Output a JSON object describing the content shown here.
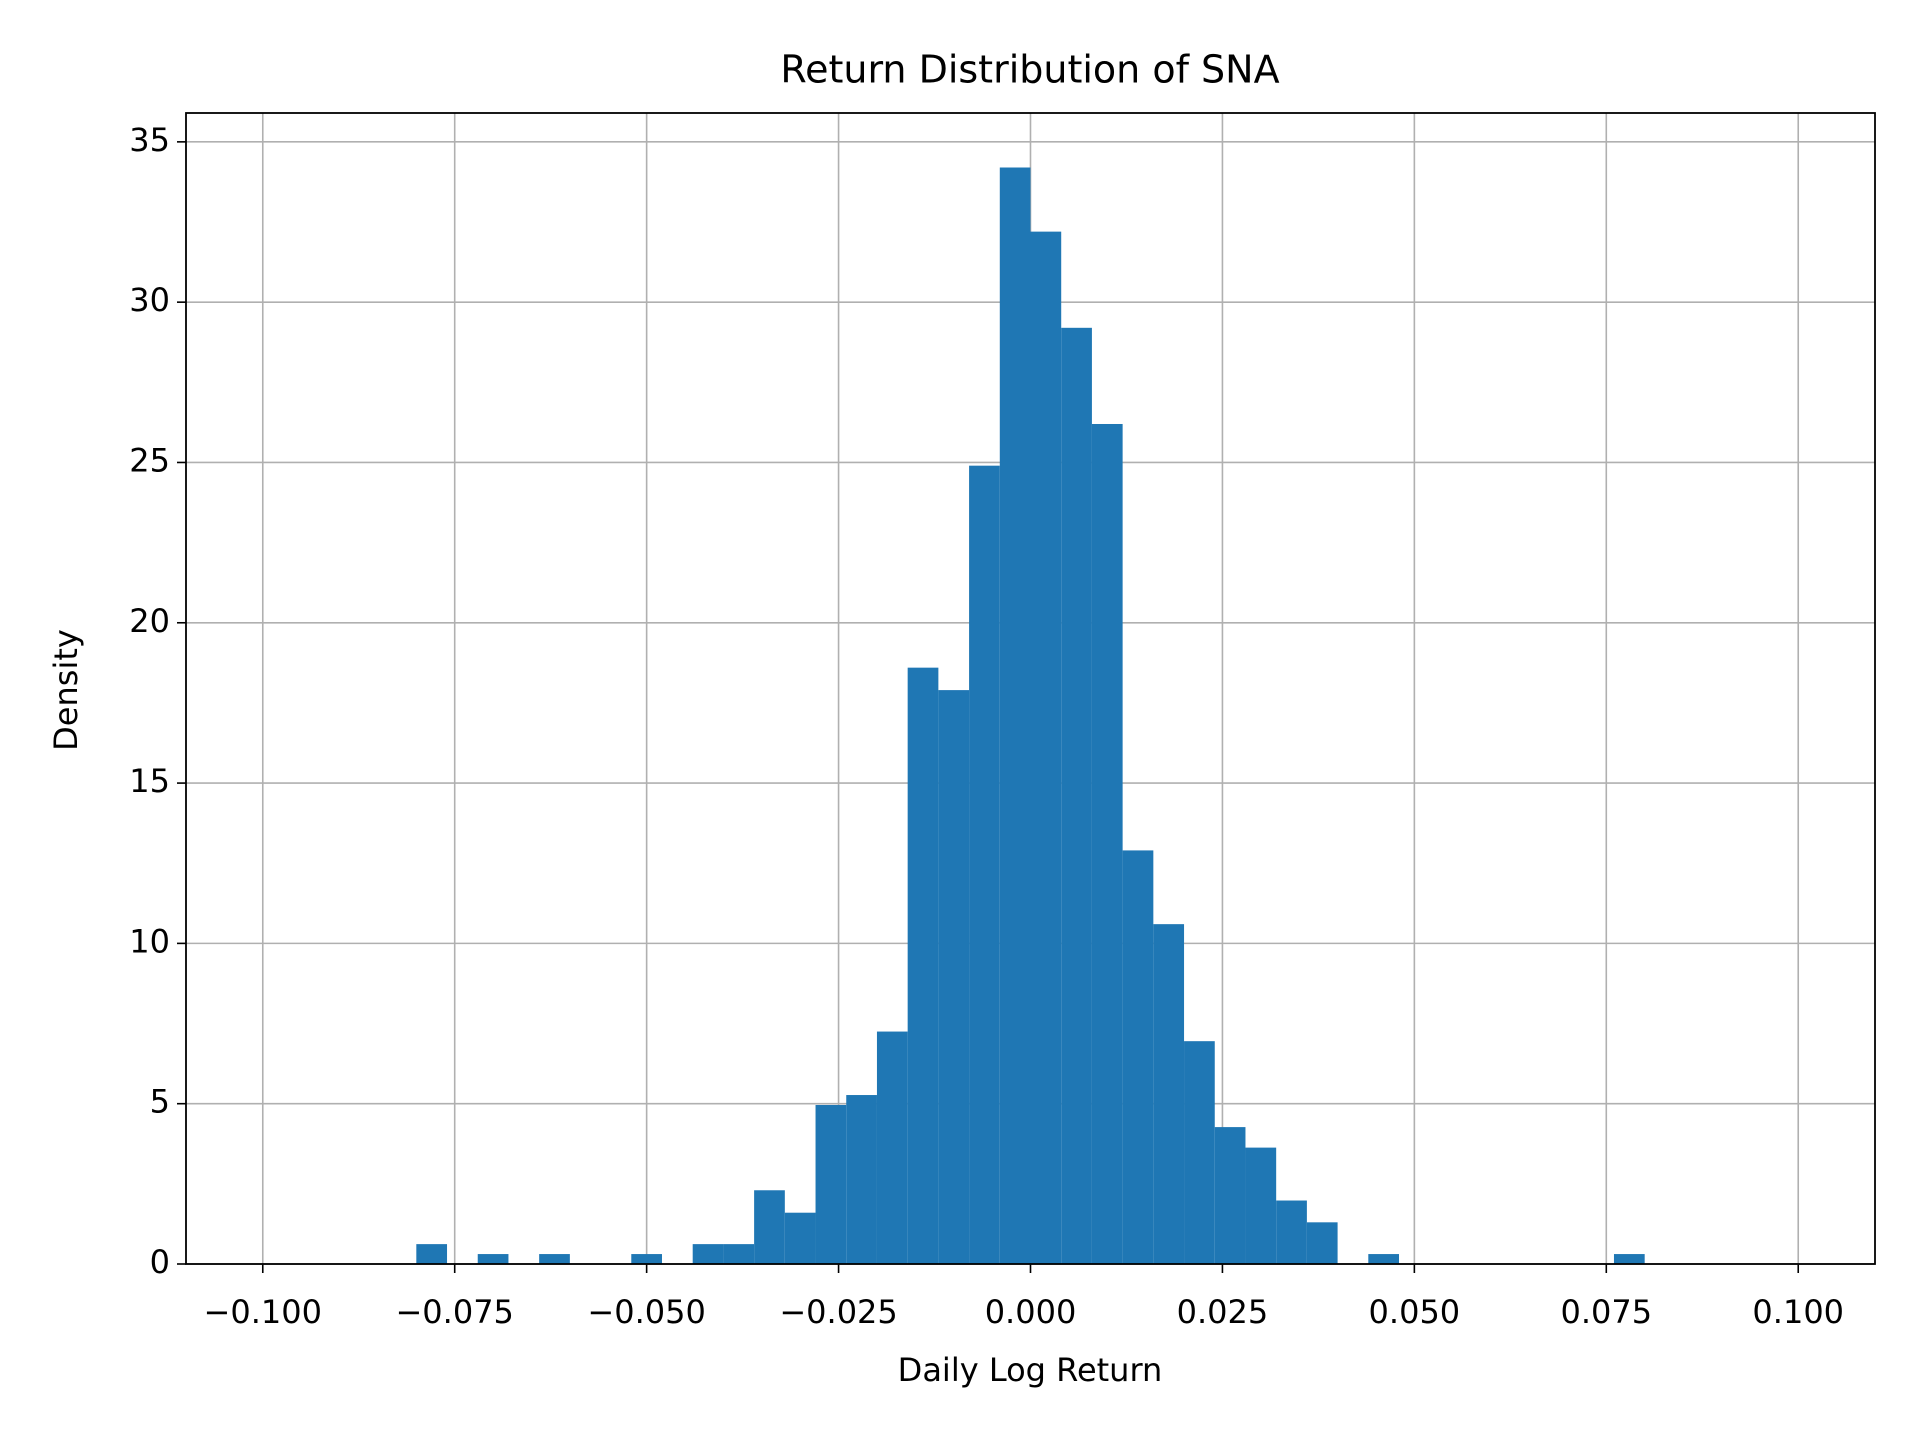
{
  "chart_data": {
    "type": "histogram",
    "title": "Return Distribution of SNA",
    "xlabel": "Daily Log Return",
    "ylabel": "Density",
    "bins": [
      -0.08,
      -0.076,
      -0.072,
      -0.068,
      -0.064,
      -0.06,
      -0.056,
      -0.052,
      -0.048,
      -0.044,
      -0.04,
      -0.036,
      -0.032,
      -0.028,
      -0.024,
      -0.02,
      -0.016,
      -0.012,
      -0.008,
      -0.004,
      0,
      0.004,
      0.008,
      0.012,
      0.016,
      0.02,
      0.024,
      0.028,
      0.032,
      0.036,
      0.04,
      0.044,
      0.048,
      0.052,
      0.056,
      0.06,
      0.064,
      0.068,
      0.072,
      0.076,
      0.08
    ],
    "values": [
      0.62,
      0,
      0.31,
      0,
      0.31,
      0,
      0,
      0.31,
      0,
      0.62,
      0.62,
      2.3,
      1.6,
      4.96,
      5.27,
      7.25,
      18.6,
      17.9,
      24.9,
      34.2,
      32.2,
      29.2,
      26.2,
      12.9,
      10.6,
      6.95,
      4.27,
      3.63,
      1.98,
      1.3,
      0,
      0.31,
      0,
      0,
      0,
      0,
      0,
      0,
      0,
      0.31
    ],
    "color": "#1f77b4",
    "xlim": [
      -0.11,
      0.11
    ],
    "xticks": [
      {
        "value": -0.1,
        "label": "−0.100"
      },
      {
        "value": -0.075,
        "label": "−0.075"
      },
      {
        "value": -0.05,
        "label": "−0.050"
      },
      {
        "value": -0.025,
        "label": "−0.025"
      },
      {
        "value": 0,
        "label": "0.000"
      },
      {
        "value": 0.025,
        "label": "0.025"
      },
      {
        "value": 0.05,
        "label": "0.050"
      },
      {
        "value": 0.075,
        "label": "0.075"
      },
      {
        "value": 0.1,
        "label": "0.100"
      }
    ],
    "ylim": [
      0,
      35.9
    ],
    "yticks": [
      0,
      5,
      10,
      15,
      20,
      25,
      30,
      35
    ],
    "grid": true
  }
}
